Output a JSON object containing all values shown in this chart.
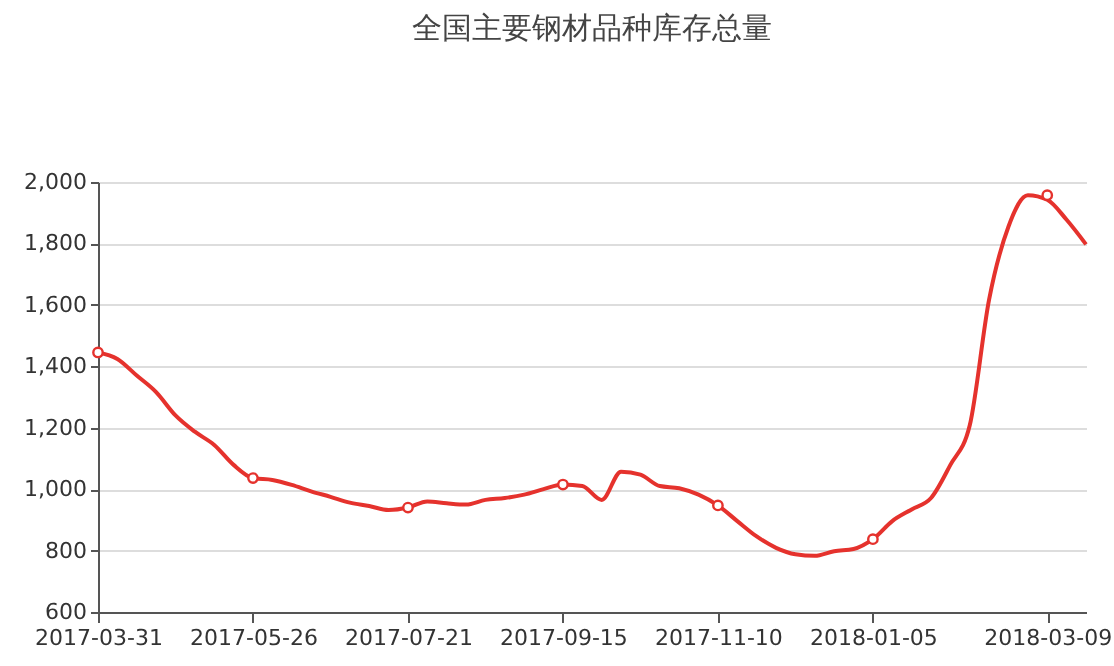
{
  "chart_data": {
    "type": "line",
    "title": "全国主要钢材品种库存总量",
    "x": [
      "2017-03-31",
      "2017-04-07",
      "2017-04-14",
      "2017-04-21",
      "2017-04-28",
      "2017-05-05",
      "2017-05-12",
      "2017-05-19",
      "2017-05-26",
      "2017-06-02",
      "2017-06-09",
      "2017-06-16",
      "2017-06-23",
      "2017-06-30",
      "2017-07-07",
      "2017-07-14",
      "2017-07-21",
      "2017-07-28",
      "2017-08-04",
      "2017-08-11",
      "2017-08-18",
      "2017-08-25",
      "2017-09-01",
      "2017-09-08",
      "2017-09-15",
      "2017-09-22",
      "2017-09-29",
      "2017-10-06",
      "2017-10-13",
      "2017-10-20",
      "2017-10-27",
      "2017-11-03",
      "2017-11-10",
      "2017-11-17",
      "2017-11-24",
      "2017-12-01",
      "2017-12-08",
      "2017-12-15",
      "2017-12-22",
      "2017-12-29",
      "2018-01-05",
      "2018-01-12",
      "2018-01-19",
      "2018-01-26",
      "2018-02-02",
      "2018-02-09",
      "2018-02-16",
      "2018-02-23",
      "2018-03-02",
      "2018-03-09",
      "2018-03-16",
      "2018-03-23"
    ],
    "series": [
      {
        "color": "#e5322d",
        "values": [
          1445,
          1424,
          1370,
          1316,
          1240,
          1187,
          1144,
          1079,
          1036,
          1030,
          1014,
          993,
          975,
          956,
          945,
          932,
          940,
          960,
          954,
          950,
          965,
          971,
          982,
          1000,
          1015,
          1010,
          965,
          1057,
          1047,
          1010,
          1003,
          982,
          947,
          896,
          846,
          809,
          788,
          783,
          798,
          805,
          837,
          896,
          934,
          971,
          1079,
          1208,
          1618,
          1855,
          1957,
          1942,
          1877,
          1797
        ]
      },
      {
        "type": "scatter",
        "color": "#e5322d",
        "x": [
          "2017-03-31",
          "2017-05-26",
          "2017-07-21",
          "2017-09-15",
          "2017-11-10",
          "2018-01-05",
          "2018-03-09"
        ],
        "values": [
          1445,
          1036,
          940,
          1015,
          947,
          837,
          1957
        ]
      }
    ],
    "xlim": [
      "2017-03-31",
      "2018-03-23"
    ],
    "xticks": [
      "2017-03-31",
      "2017-05-26",
      "2017-07-21",
      "2017-09-15",
      "2017-11-10",
      "2018-01-05",
      "2018-03-09"
    ],
    "ylim": [
      600,
      2000
    ],
    "yticks": [
      {
        "value": 600,
        "label": "600"
      },
      {
        "value": 800,
        "label": "800"
      },
      {
        "value": 1000,
        "label": "1,000"
      },
      {
        "value": 1200,
        "label": "1,200"
      },
      {
        "value": 1400,
        "label": "1,400"
      },
      {
        "value": 1600,
        "label": "1,600"
      },
      {
        "value": 1800,
        "label": "1,800"
      },
      {
        "value": 2000,
        "label": "2,000"
      }
    ],
    "grid": "y",
    "line_style": "solid"
  }
}
